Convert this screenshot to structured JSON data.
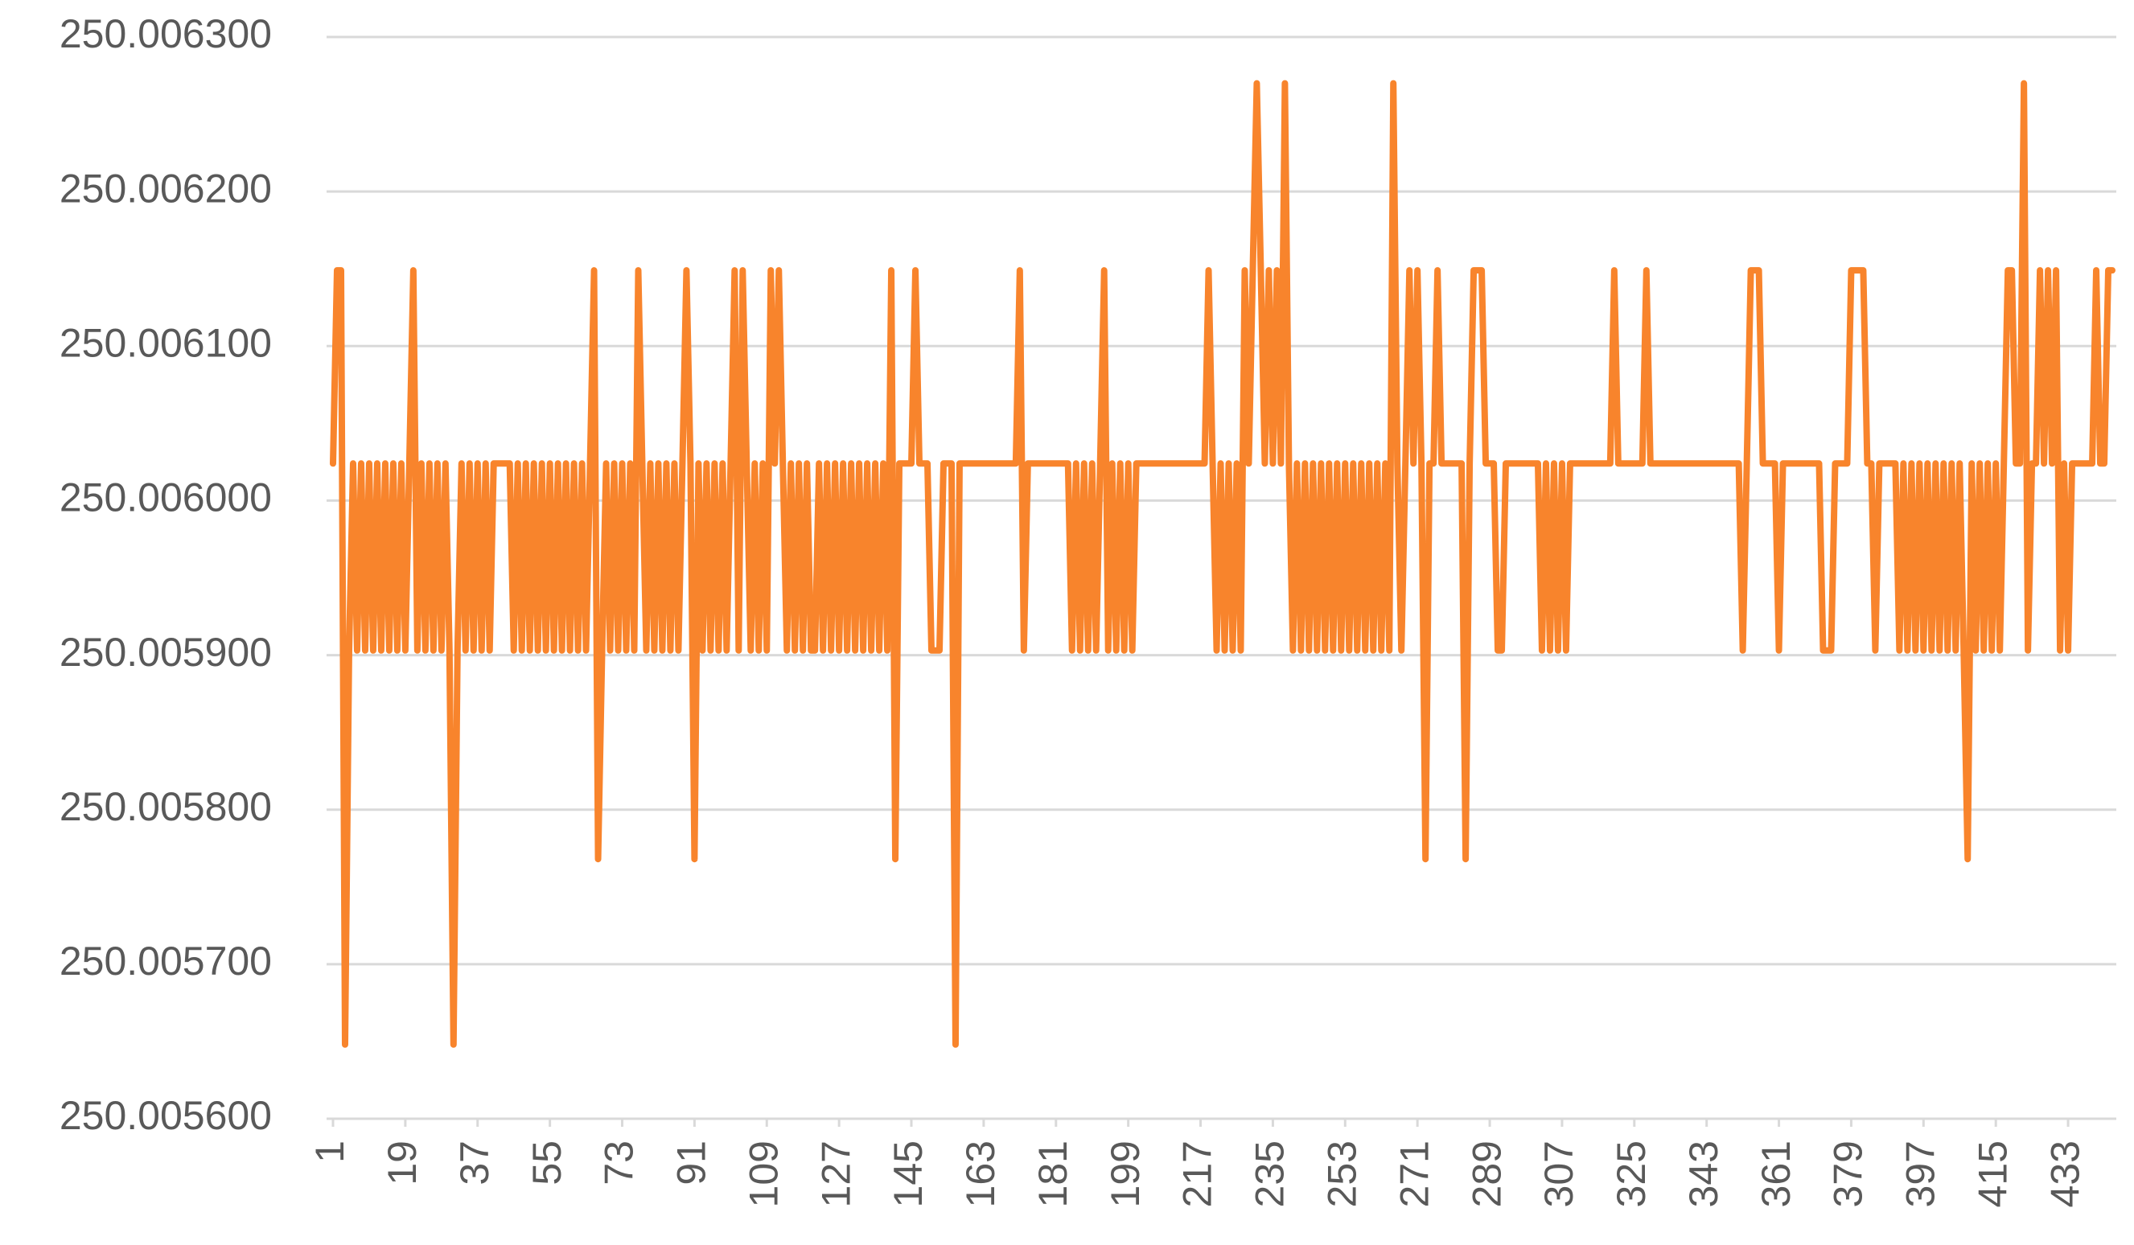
{
  "chart_data": {
    "type": "line",
    "color": "#f8842c",
    "grid": true,
    "ylim": [
      250.0056,
      250.0063
    ],
    "yticks": [
      {
        "value": 250.0056,
        "label": "250.005600"
      },
      {
        "value": 250.0057,
        "label": "250.005700"
      },
      {
        "value": 250.0058,
        "label": "250.005800"
      },
      {
        "value": 250.0059,
        "label": "250.005900"
      },
      {
        "value": 250.006,
        "label": "250.006000"
      },
      {
        "value": 250.0061,
        "label": "250.006100"
      },
      {
        "value": 250.0062,
        "label": "250.006200"
      },
      {
        "value": 250.0063,
        "label": "250.006300"
      }
    ],
    "xlim": [
      1,
      444
    ],
    "xticks": [
      1,
      19,
      37,
      55,
      73,
      91,
      109,
      127,
      145,
      163,
      181,
      199,
      217,
      235,
      253,
      271,
      289,
      307,
      325,
      343,
      361,
      379,
      397,
      415,
      433
    ],
    "x": [
      1,
      2,
      3,
      4,
      5,
      6,
      7,
      8,
      9,
      10,
      11,
      12,
      13,
      14,
      15,
      16,
      17,
      18,
      19,
      20,
      21,
      22,
      23,
      24,
      25,
      26,
      27,
      28,
      29,
      30,
      31,
      32,
      33,
      34,
      35,
      36,
      37,
      38,
      39,
      40,
      41,
      42,
      43,
      44,
      45,
      46,
      47,
      48,
      49,
      50,
      51,
      52,
      53,
      54,
      55,
      56,
      57,
      58,
      59,
      60,
      61,
      62,
      63,
      64,
      65,
      66,
      67,
      68,
      69,
      70,
      71,
      72,
      73,
      74,
      75,
      76,
      77,
      78,
      79,
      80,
      81,
      82,
      83,
      84,
      85,
      86,
      87,
      88,
      89,
      90,
      91,
      92,
      93,
      94,
      95,
      96,
      97,
      98,
      99,
      100,
      101,
      102,
      103,
      104,
      105,
      106,
      107,
      108,
      109,
      110,
      111,
      112,
      113,
      114,
      115,
      116,
      117,
      118,
      119,
      120,
      121,
      122,
      123,
      124,
      125,
      126,
      127,
      128,
      129,
      130,
      131,
      132,
      133,
      134,
      135,
      136,
      137,
      138,
      139,
      140,
      141,
      142,
      143,
      144,
      145,
      146,
      147,
      148,
      149,
      150,
      151,
      152,
      153,
      154,
      155,
      156,
      157,
      158,
      159,
      160,
      161,
      162,
      163,
      164,
      165,
      166,
      167,
      168,
      169,
      170,
      171,
      172,
      173,
      174,
      175,
      176,
      177,
      178,
      179,
      180,
      181,
      182,
      183,
      184,
      185,
      186,
      187,
      188,
      189,
      190,
      191,
      192,
      193,
      194,
      195,
      196,
      197,
      198,
      199,
      200,
      201,
      202,
      203,
      204,
      205,
      206,
      207,
      208,
      209,
      210,
      211,
      212,
      213,
      214,
      215,
      216,
      217,
      218,
      219,
      220,
      221,
      222,
      223,
      224,
      225,
      226,
      227,
      228,
      229,
      230,
      231,
      232,
      233,
      234,
      235,
      236,
      237,
      238,
      239,
      240,
      241,
      242,
      243,
      244,
      245,
      246,
      247,
      248,
      249,
      250,
      251,
      252,
      253,
      254,
      255,
      256,
      257,
      258,
      259,
      260,
      261,
      262,
      263,
      264,
      265,
      266,
      267,
      268,
      269,
      270,
      271,
      272,
      273,
      274,
      275,
      276,
      277,
      278,
      279,
      280,
      281,
      282,
      283,
      284,
      285,
      286,
      287,
      288,
      289,
      290,
      291,
      292,
      293,
      294,
      295,
      296,
      297,
      298,
      299,
      300,
      301,
      302,
      303,
      304,
      305,
      306,
      307,
      308,
      309,
      310,
      311,
      312,
      313,
      314,
      315,
      316,
      317,
      318,
      319,
      320,
      321,
      322,
      323,
      324,
      325,
      326,
      327,
      328,
      329,
      330,
      331,
      332,
      333,
      334,
      335,
      336,
      337,
      338,
      339,
      340,
      341,
      342,
      343,
      344,
      345,
      346,
      347,
      348,
      349,
      350,
      351,
      352,
      353,
      354,
      355,
      356,
      357,
      358,
      359,
      360,
      361,
      362,
      363,
      364,
      365,
      366,
      367,
      368,
      369,
      370,
      371,
      372,
      373,
      374,
      375,
      376,
      377,
      378,
      379,
      380,
      381,
      382,
      383,
      384,
      385,
      386,
      387,
      388,
      389,
      390,
      391,
      392,
      393,
      394,
      395,
      396,
      397,
      398,
      399,
      400,
      401,
      402,
      403,
      404,
      405,
      406,
      407,
      408,
      409,
      410,
      411,
      412,
      413,
      414,
      415,
      416,
      417,
      418,
      419,
      420,
      421,
      422,
      423,
      424,
      425,
      426,
      427,
      428,
      429,
      430,
      431,
      432,
      433,
      434,
      435,
      436,
      437,
      438,
      439,
      440,
      441,
      442,
      443,
      444
    ],
    "values": [
      250.006024,
      250.006149,
      250.006149,
      250.005648,
      250.005903,
      250.006024,
      250.005903,
      250.006024,
      250.005903,
      250.006024,
      250.005903,
      250.006024,
      250.005903,
      250.006024,
      250.005903,
      250.006024,
      250.005903,
      250.006024,
      250.005903,
      250.006024,
      250.006149,
      250.005903,
      250.006024,
      250.005903,
      250.006024,
      250.005903,
      250.006024,
      250.005903,
      250.006024,
      250.005903,
      250.005648,
      250.005903,
      250.006024,
      250.005903,
      250.006024,
      250.005903,
      250.006024,
      250.005903,
      250.006024,
      250.005903,
      250.006024,
      250.006024,
      250.006024,
      250.006024,
      250.006024,
      250.005903,
      250.006024,
      250.005903,
      250.006024,
      250.005903,
      250.006024,
      250.005903,
      250.006024,
      250.005903,
      250.006024,
      250.005903,
      250.006024,
      250.005903,
      250.006024,
      250.005903,
      250.006024,
      250.005903,
      250.006024,
      250.005903,
      250.006024,
      250.006149,
      250.005768,
      250.005903,
      250.006024,
      250.005903,
      250.006024,
      250.005903,
      250.006024,
      250.005903,
      250.006024,
      250.005903,
      250.006149,
      250.006024,
      250.005903,
      250.006024,
      250.005903,
      250.006024,
      250.005903,
      250.006024,
      250.005903,
      250.006024,
      250.005903,
      250.006024,
      250.006149,
      250.006024,
      250.005768,
      250.006024,
      250.005903,
      250.006024,
      250.005903,
      250.006024,
      250.005903,
      250.006024,
      250.005903,
      250.006024,
      250.006149,
      250.005903,
      250.006149,
      250.006024,
      250.005903,
      250.006024,
      250.005903,
      250.006024,
      250.005903,
      250.006149,
      250.006024,
      250.006149,
      250.006024,
      250.005903,
      250.006024,
      250.005903,
      250.006024,
      250.005903,
      250.006024,
      250.005903,
      250.005903,
      250.006024,
      250.005903,
      250.006024,
      250.005903,
      250.006024,
      250.005903,
      250.006024,
      250.005903,
      250.006024,
      250.005903,
      250.006024,
      250.005903,
      250.006024,
      250.005903,
      250.006024,
      250.005903,
      250.006024,
      250.005903,
      250.006149,
      250.005768,
      250.006024,
      250.006024,
      250.006024,
      250.006024,
      250.006149,
      250.006024,
      250.006024,
      250.006024,
      250.005903,
      250.005903,
      250.005903,
      250.006024,
      250.006024,
      250.006024,
      250.005648,
      250.006024,
      250.006024,
      250.006024,
      250.006024,
      250.006024,
      250.006024,
      250.006024,
      250.006024,
      250.006024,
      250.006024,
      250.006024,
      250.006024,
      250.006024,
      250.006024,
      250.006024,
      250.006149,
      250.005903,
      250.006024,
      250.006024,
      250.006024,
      250.006024,
      250.006024,
      250.006024,
      250.006024,
      250.006024,
      250.006024,
      250.006024,
      250.006024,
      250.005903,
      250.006024,
      250.005903,
      250.006024,
      250.005903,
      250.006024,
      250.005903,
      250.006024,
      250.006149,
      250.005903,
      250.006024,
      250.005903,
      250.006024,
      250.005903,
      250.006024,
      250.005903,
      250.006024,
      250.006024,
      250.006024,
      250.006024,
      250.006024,
      250.006024,
      250.006024,
      250.006024,
      250.006024,
      250.006024,
      250.006024,
      250.006024,
      250.006024,
      250.006024,
      250.006024,
      250.006024,
      250.006024,
      250.006024,
      250.006149,
      250.006024,
      250.005903,
      250.006024,
      250.005903,
      250.006024,
      250.005903,
      250.006024,
      250.005903,
      250.006149,
      250.006024,
      250.006149,
      250.00627,
      250.006149,
      250.006024,
      250.006149,
      250.006024,
      250.006149,
      250.006024,
      250.00627,
      250.006024,
      250.005903,
      250.006024,
      250.005903,
      250.006024,
      250.005903,
      250.006024,
      250.005903,
      250.006024,
      250.005903,
      250.006024,
      250.005903,
      250.006024,
      250.005903,
      250.006024,
      250.005903,
      250.006024,
      250.005903,
      250.006024,
      250.005903,
      250.006024,
      250.005903,
      250.006024,
      250.005903,
      250.006024,
      250.005903,
      250.00627,
      250.006024,
      250.005903,
      250.006024,
      250.006149,
      250.006024,
      250.006149,
      250.006024,
      250.005768,
      250.006024,
      250.006024,
      250.006149,
      250.006024,
      250.006024,
      250.006024,
      250.006024,
      250.006024,
      250.006024,
      250.005768,
      250.006024,
      250.006149,
      250.006149,
      250.006149,
      250.006024,
      250.006024,
      250.006024,
      250.005903,
      250.005903,
      250.006024,
      250.006024,
      250.006024,
      250.006024,
      250.006024,
      250.006024,
      250.006024,
      250.006024,
      250.006024,
      250.005903,
      250.006024,
      250.005903,
      250.006024,
      250.005903,
      250.006024,
      250.005903,
      250.006024,
      250.006024,
      250.006024,
      250.006024,
      250.006024,
      250.006024,
      250.006024,
      250.006024,
      250.006024,
      250.006024,
      250.006024,
      250.006149,
      250.006024,
      250.006024,
      250.006024,
      250.006024,
      250.006024,
      250.006024,
      250.006024,
      250.006149,
      250.006024,
      250.006024,
      250.006024,
      250.006024,
      250.006024,
      250.006024,
      250.006024,
      250.006024,
      250.006024,
      250.006024,
      250.006024,
      250.006024,
      250.006024,
      250.006024,
      250.006024,
      250.006024,
      250.006024,
      250.006024,
      250.006024,
      250.006024,
      250.006024,
      250.006024,
      250.006024,
      250.005903,
      250.006024,
      250.006149,
      250.006149,
      250.006149,
      250.006024,
      250.006024,
      250.006024,
      250.006024,
      250.005903,
      250.006024,
      250.006024,
      250.006024,
      250.006024,
      250.006024,
      250.006024,
      250.006024,
      250.006024,
      250.006024,
      250.006024,
      250.005903,
      250.005903,
      250.005903,
      250.006024,
      250.006024,
      250.006024,
      250.006024,
      250.006149,
      250.006149,
      250.006149,
      250.006149,
      250.006024,
      250.006024,
      250.005903,
      250.006024,
      250.006024,
      250.006024,
      250.006024,
      250.006024,
      250.005903,
      250.006024,
      250.005903,
      250.006024,
      250.005903,
      250.006024,
      250.005903,
      250.006024,
      250.005903,
      250.006024,
      250.005903,
      250.006024,
      250.005903,
      250.006024,
      250.005903,
      250.006024,
      250.005903,
      250.005768,
      250.006024,
      250.005903,
      250.006024,
      250.005903,
      250.006024,
      250.005903,
      250.006024,
      250.005903,
      250.006024,
      250.006149,
      250.006149,
      250.006024,
      250.006024,
      250.00627,
      250.005903,
      250.006024,
      250.006024,
      250.006149,
      250.006024,
      250.006149,
      250.006024,
      250.006149,
      250.005903,
      250.006024,
      250.005903,
      250.006024,
      250.006024,
      250.006024,
      250.006024,
      250.006024,
      250.006024,
      250.006149,
      250.006024,
      250.006024,
      250.006149,
      250.006149
    ]
  }
}
